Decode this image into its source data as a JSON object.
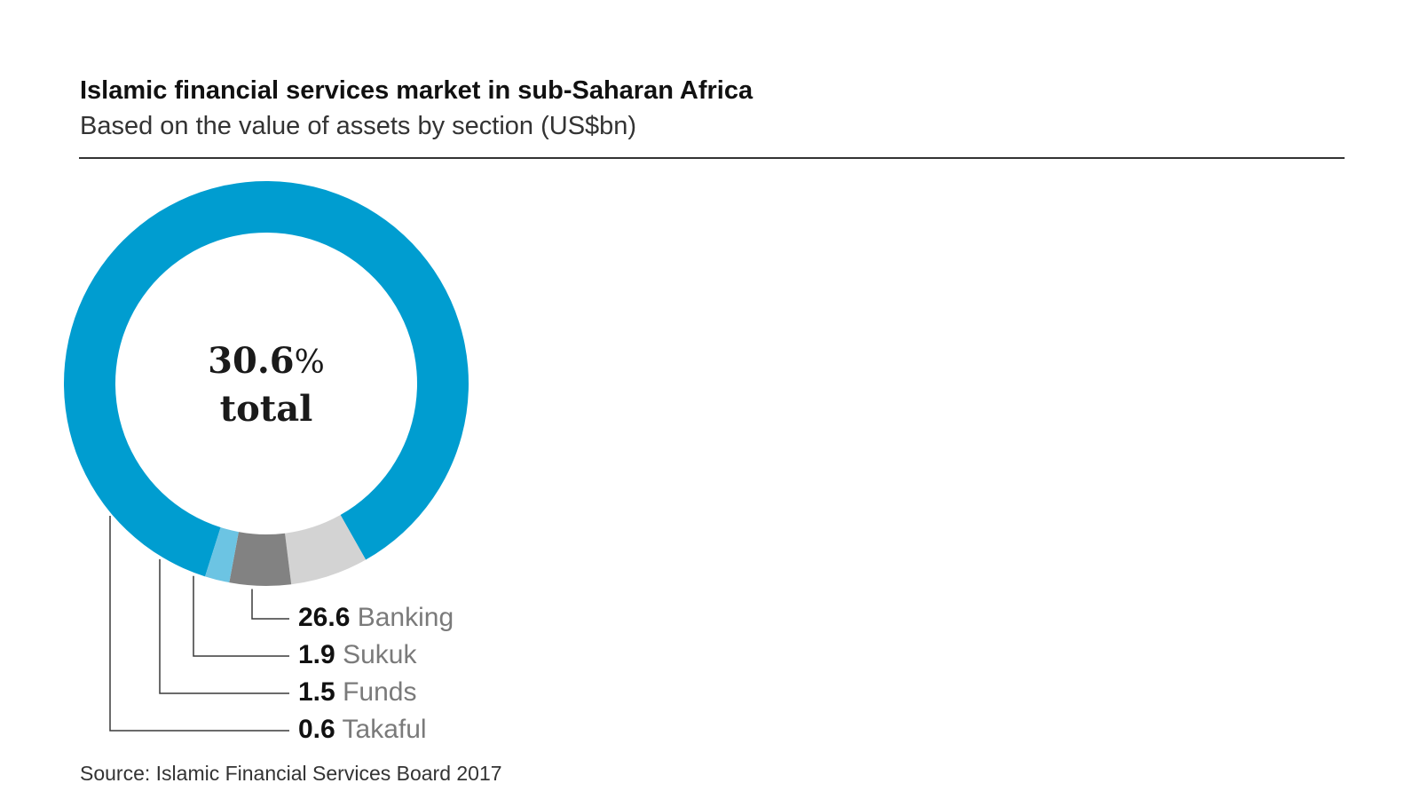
{
  "header": {
    "title": "Islamic financial services market in sub-Saharan Africa",
    "subtitle": "Based on the value of assets by section (US$bn)"
  },
  "center": {
    "value": "30.6",
    "unit": "%",
    "label": "total"
  },
  "source": "Source: Islamic Financial Services Board 2017",
  "chart_data": {
    "type": "pie",
    "style": "donut",
    "title": "Islamic financial services market in sub-Saharan Africa",
    "subtitle": "Based on the value of assets by section (US$bn)",
    "total": 30.6,
    "categories": [
      "Banking",
      "Sukuk",
      "Funds",
      "Takaful"
    ],
    "values": [
      26.6,
      1.9,
      1.5,
      0.6
    ],
    "value_labels": [
      "26.6",
      "1.9",
      "1.5",
      "0.6"
    ],
    "colors": [
      "#009dd0",
      "#d3d3d3",
      "#828282",
      "#6cc4e3"
    ],
    "legend_placement": "bottom-left",
    "grid": false
  }
}
